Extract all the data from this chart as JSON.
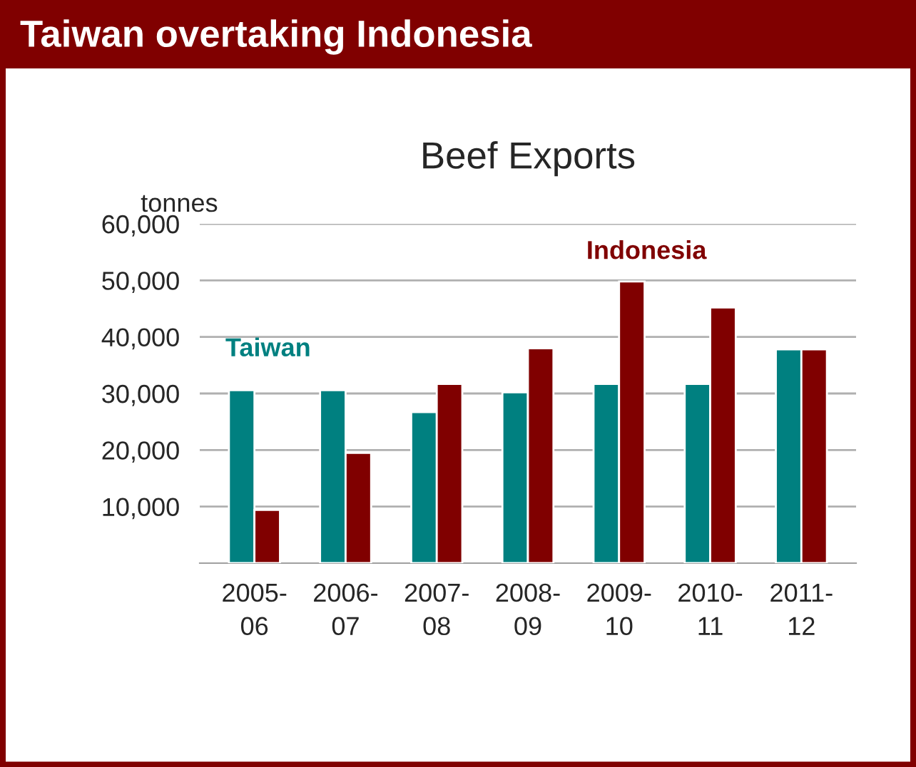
{
  "chart_data": {
    "type": "bar",
    "title": "Taiwan overtaking Indonesia",
    "subtitle": "Beef Exports",
    "ylabel": "tonnes",
    "categories": [
      "2005-\n06",
      "2006-\n07",
      "2007-\n08",
      "2008-\n09",
      "2009-\n10",
      "2010-\n11",
      "2011-\n12"
    ],
    "series": [
      {
        "name": "Taiwan",
        "color": "#008080",
        "values": [
          30600,
          30600,
          26700,
          30200,
          31700,
          31700,
          37800
        ]
      },
      {
        "name": "Indonesia",
        "color": "#800000",
        "values": [
          9400,
          19500,
          31700,
          38000,
          49800,
          45200,
          37800
        ]
      }
    ],
    "ylim": [
      0,
      60000
    ],
    "yticks": [
      {
        "value": 10000,
        "label": "10,000"
      },
      {
        "value": 20000,
        "label": "20,000"
      },
      {
        "value": 30000,
        "label": "30,000"
      },
      {
        "value": 40000,
        "label": "40,000"
      },
      {
        "value": 50000,
        "label": "50,000"
      },
      {
        "value": 60000,
        "label": "60,000"
      }
    ],
    "grid": "y",
    "legend": false
  }
}
